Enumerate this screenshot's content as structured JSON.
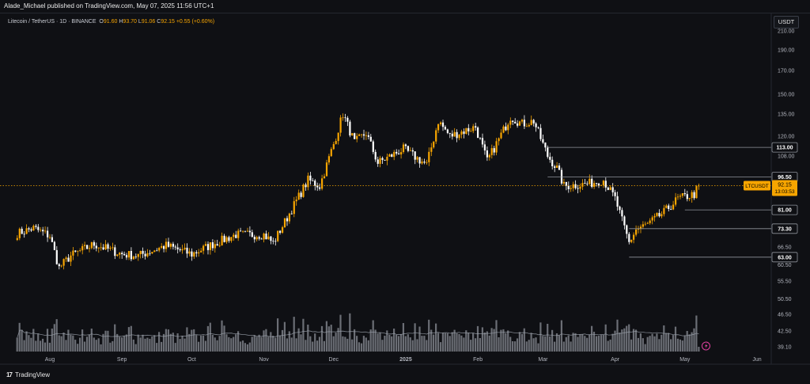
{
  "header": {
    "published": "Alade_Michael published on TradingView.com, May 07, 2025 11:56 UTC+1"
  },
  "legend": {
    "symbol": "Litecoin / TetherUS · 1D · BINANCE",
    "ohlc_o_label": "O",
    "ohlc_o": "91.60",
    "ohlc_h_label": "H",
    "ohlc_h": "93.70",
    "ohlc_l_label": "L",
    "ohlc_l": "91.06",
    "ohlc_c_label": "C",
    "ohlc_c": "92.15",
    "change": "+0.55 (+0.60%)"
  },
  "toolbar": {
    "unit_label": "USDT"
  },
  "footer": {
    "brand": "TradingView",
    "logo": "17"
  },
  "icons": {
    "brand_logo": "tradingview-logo-icon",
    "flash": "lightning-icon"
  },
  "colors": {
    "background": "#0f1014",
    "up_candle": "#f7a500",
    "down_candle": "#ffffff",
    "volume": "#8b8e96",
    "level_line": "#8f939b",
    "current_price": "#f7a500",
    "badge_dark": "#0f1014"
  },
  "chart_data": {
    "type": "candlestick",
    "symbol": "LTCUSDT",
    "exchange": "BINANCE",
    "interval": "1D",
    "y_axis_ticks": [
      "210.00",
      "190.00",
      "170.00",
      "150.00",
      "135.00",
      "120.00",
      "108.00",
      "96.50",
      "81.00",
      "73.30",
      "66.50",
      "60.50",
      "55.50",
      "50.50",
      "46.50",
      "42.50",
      "39.10"
    ],
    "x_axis_labels": [
      "Aug",
      "Sep",
      "Oct",
      "Nov",
      "Dec",
      "2025",
      "Feb",
      "Mar",
      "Apr",
      "May",
      "Jun"
    ],
    "y_scale": "log",
    "ylim": [
      39.1,
      210
    ],
    "current_price": {
      "label": "LTCUSDT",
      "price": "92.15",
      "countdown": "13:03:53"
    },
    "horizontal_levels": [
      {
        "label": "113.00",
        "price": 113.0,
        "from": "Mar"
      },
      {
        "label": "96.50",
        "price": 96.5,
        "from": "Mar"
      },
      {
        "label": "81.00",
        "price": 81.0,
        "from": "May"
      },
      {
        "label": "73.30",
        "price": 73.3,
        "from": "Apr"
      },
      {
        "label": "63.00",
        "price": 63.0,
        "from": "Apr"
      }
    ],
    "price_path": [
      [
        "Jul 18",
        71.5
      ],
      [
        "Jul 25",
        73.5
      ],
      [
        "Aug 1",
        70.5
      ],
      [
        "Aug 5",
        59.5
      ],
      [
        "Aug 10",
        63.5
      ],
      [
        "Aug 20",
        67.5
      ],
      [
        "Sep 1",
        64.0
      ],
      [
        "Sep 8",
        63.5
      ],
      [
        "Sep 20",
        67.0
      ],
      [
        "Oct 1",
        64.0
      ],
      [
        "Oct 10",
        67.5
      ],
      [
        "Oct 20",
        71.0
      ],
      [
        "Nov 1",
        71.0
      ],
      [
        "Nov 5",
        68.0
      ],
      [
        "Nov 10",
        76.0
      ],
      [
        "Nov 15",
        85.0
      ],
      [
        "Nov 20",
        95.0
      ],
      [
        "Nov 25",
        92.0
      ],
      [
        "Dec 1",
        115.0
      ],
      [
        "Dec 5",
        135.0
      ],
      [
        "Dec 10",
        116.0
      ],
      [
        "Dec 15",
        122.0
      ],
      [
        "Dec 20",
        104.0
      ],
      [
        "Dec 31",
        112.0
      ],
      [
        "Jan 10",
        103.0
      ],
      [
        "Jan 15",
        130.0
      ],
      [
        "Jan 20",
        120.0
      ],
      [
        "Jan 31",
        126.0
      ],
      [
        "Feb 5",
        105.0
      ],
      [
        "Feb 10",
        118.0
      ],
      [
        "Feb 15",
        133.0
      ],
      [
        "Feb 20",
        128.0
      ],
      [
        "Feb 25",
        130.0
      ],
      [
        "Mar 3",
        108.0
      ],
      [
        "Mar 7",
        101.0
      ],
      [
        "Mar 10",
        92.0
      ],
      [
        "Mar 20",
        93.0
      ],
      [
        "Mar 27",
        95.0
      ],
      [
        "Apr 1",
        86.0
      ],
      [
        "Apr 7",
        68.0
      ],
      [
        "Apr 10",
        73.0
      ],
      [
        "Apr 15",
        75.0
      ],
      [
        "Apr 22",
        80.0
      ],
      [
        "Apr 28",
        86.0
      ],
      [
        "May 5",
        88.0
      ],
      [
        "May 7",
        92.15
      ]
    ],
    "volume": "shown as bars along the bottom with a moving-average line"
  }
}
